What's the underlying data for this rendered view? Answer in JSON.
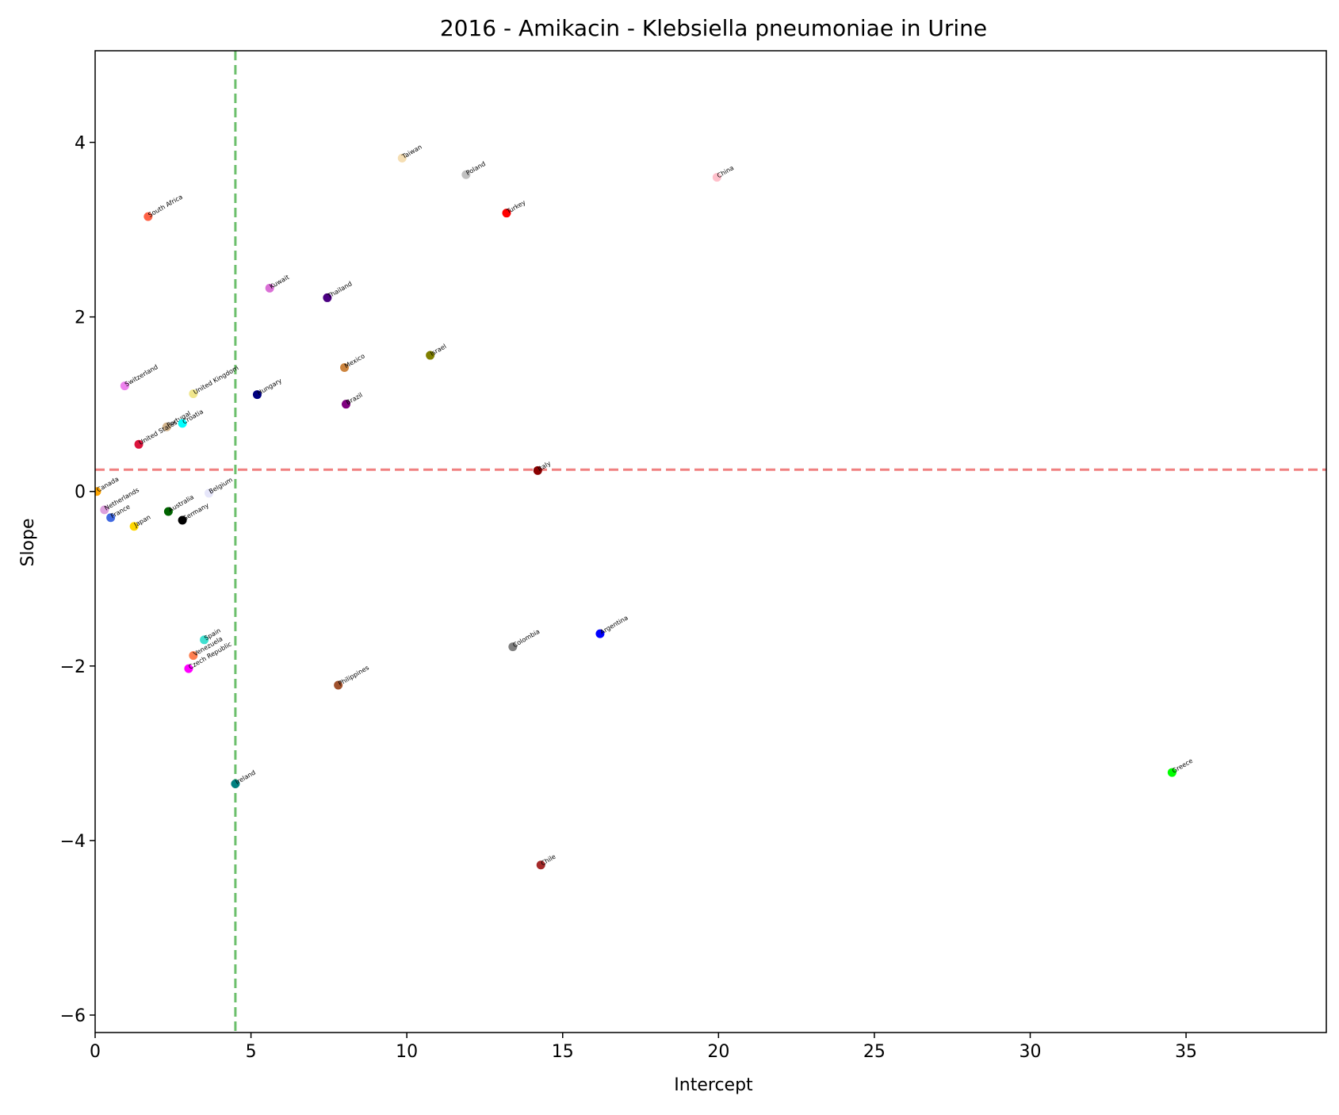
{
  "chart_data": {
    "type": "scatter",
    "title": "2016 - Amikacin - Klebsiella pneumoniae in Urine",
    "xlabel": "Intercept",
    "ylabel": "Slope",
    "xlim": [
      0,
      39.5
    ],
    "ylim": [
      -6.2,
      5.05
    ],
    "xticks": [
      0,
      5,
      10,
      15,
      20,
      25,
      30,
      35
    ],
    "yticks": [
      -6,
      -4,
      -2,
      0,
      2,
      4
    ],
    "xtick_labels": [
      "0",
      "5",
      "10",
      "15",
      "20",
      "25",
      "30",
      "35"
    ],
    "ytick_labels": [
      "−6",
      "−4",
      "−2",
      "0",
      "2",
      "4"
    ],
    "grid": false,
    "reference_lines": [
      {
        "orientation": "horizontal",
        "value": 0.25,
        "color": "#f08080",
        "style": "dashed"
      },
      {
        "orientation": "vertical",
        "value": 4.5,
        "color": "#6cbf6c",
        "style": "dashed"
      }
    ],
    "points": [
      {
        "label": "Taiwan",
        "x": 9.85,
        "y": 3.82,
        "color": "#f5deb3"
      },
      {
        "label": "Poland",
        "x": 11.9,
        "y": 3.63,
        "color": "#c0c0c0"
      },
      {
        "label": "China",
        "x": 19.95,
        "y": 3.6,
        "color": "#ffc0cb"
      },
      {
        "label": "Turkey",
        "x": 13.2,
        "y": 3.19,
        "color": "#ff0000"
      },
      {
        "label": "South Africa",
        "x": 1.7,
        "y": 3.15,
        "color": "#ff6347"
      },
      {
        "label": "Kuwait",
        "x": 5.6,
        "y": 2.33,
        "color": "#da70d6"
      },
      {
        "label": "Thailand",
        "x": 7.45,
        "y": 2.22,
        "color": "#4b0082"
      },
      {
        "label": "Israel",
        "x": 10.75,
        "y": 1.56,
        "color": "#808000"
      },
      {
        "label": "Mexico",
        "x": 8.0,
        "y": 1.42,
        "color": "#cd853f"
      },
      {
        "label": "Switzerland",
        "x": 0.95,
        "y": 1.21,
        "color": "#ee82ee"
      },
      {
        "label": "United Kingdom",
        "x": 3.15,
        "y": 1.12,
        "color": "#f0e68c"
      },
      {
        "label": "Hungary",
        "x": 5.2,
        "y": 1.11,
        "color": "#000080"
      },
      {
        "label": "Brazil",
        "x": 8.05,
        "y": 1.0,
        "color": "#800080"
      },
      {
        "label": "Portugal",
        "x": 2.3,
        "y": 0.74,
        "color": "#d2b48c"
      },
      {
        "label": "Croatia",
        "x": 2.8,
        "y": 0.78,
        "color": "#00ffff"
      },
      {
        "label": "United States",
        "x": 1.4,
        "y": 0.54,
        "color": "#dc143c"
      },
      {
        "label": "Italy",
        "x": 14.2,
        "y": 0.24,
        "color": "#8b0000"
      },
      {
        "label": "Canada",
        "x": 0.05,
        "y": 0.0,
        "color": "#ffa500"
      },
      {
        "label": "Belgium",
        "x": 3.65,
        "y": -0.02,
        "color": "#e6e6fa"
      },
      {
        "label": "Netherlands",
        "x": 0.3,
        "y": -0.21,
        "color": "#dda0dd"
      },
      {
        "label": "Australia",
        "x": 2.35,
        "y": -0.23,
        "color": "#006400"
      },
      {
        "label": "France",
        "x": 0.5,
        "y": -0.3,
        "color": "#4169e1"
      },
      {
        "label": "Germany",
        "x": 2.8,
        "y": -0.33,
        "color": "#000000"
      },
      {
        "label": "Japan",
        "x": 1.25,
        "y": -0.4,
        "color": "#ffd700"
      },
      {
        "label": "Spain",
        "x": 3.5,
        "y": -1.7,
        "color": "#40e0d0"
      },
      {
        "label": "Argentina",
        "x": 16.2,
        "y": -1.63,
        "color": "#0000ff"
      },
      {
        "label": "Colombia",
        "x": 13.4,
        "y": -1.78,
        "color": "#808080"
      },
      {
        "label": "Venezuela",
        "x": 3.15,
        "y": -1.88,
        "color": "#ff7f50"
      },
      {
        "label": "Czech Republic",
        "x": 3.0,
        "y": -2.03,
        "color": "#ff00ff"
      },
      {
        "label": "Philippines",
        "x": 7.8,
        "y": -2.22,
        "color": "#a0522d"
      },
      {
        "label": "Greece",
        "x": 34.55,
        "y": -3.22,
        "color": "#00ff00"
      },
      {
        "label": "Ireland",
        "x": 4.5,
        "y": -3.35,
        "color": "#008080"
      },
      {
        "label": "Chile",
        "x": 14.3,
        "y": -4.28,
        "color": "#a52a2a"
      }
    ]
  }
}
